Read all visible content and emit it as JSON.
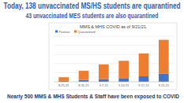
{
  "header": {
    "line1": "Today, 138 unvaccinated MS/HS students are quarantined",
    "line2": "43 unvaccinated MES students are also quarantined"
  },
  "footer": "Nearly 500 MMS & MHS Students & Staff have been exposed to COVID",
  "chart_data": {
    "type": "bar",
    "stacked": true,
    "title": "MMS & MHS COVID as of 9/21/21",
    "categories": [
      "8.25.21",
      "8.31.21",
      "9.7.21",
      "9.14.21",
      "9.17.21",
      "9.21.21"
    ],
    "series": [
      {
        "name": "Positive",
        "color": "#4472c4",
        "values": [
          10,
          20,
          30,
          40,
          60,
          90
        ]
      },
      {
        "name": "Quarantined",
        "color": "#ed7d31",
        "values": [
          40,
          100,
          160,
          190,
          250,
          370
        ]
      }
    ],
    "ylim": [
      0,
      500
    ],
    "yticks": [
      0,
      100,
      200,
      300,
      400,
      500
    ],
    "grid": true,
    "legend": "top-left",
    "tick_labels": "x"
  }
}
